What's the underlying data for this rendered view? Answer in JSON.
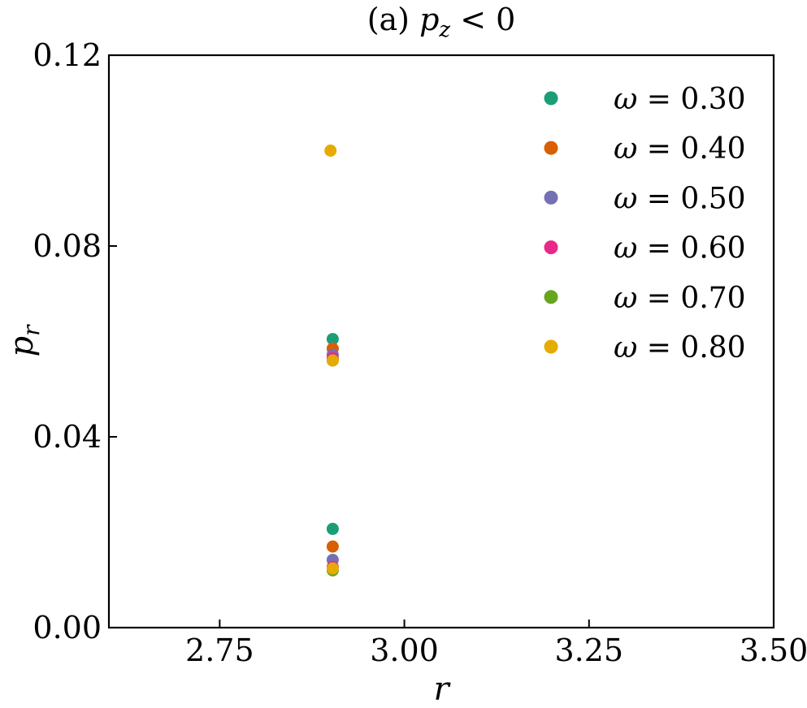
{
  "chart_data": {
    "type": "scatter",
    "title": "(a) p_z < 0",
    "title_parts": {
      "prefix": "(a) ",
      "var": "p",
      "sub": "z",
      "suffix": " < 0"
    },
    "xlabel": "r",
    "ylabel_parts": {
      "var": "p",
      "sub": "r"
    },
    "xlim": [
      2.6,
      3.5
    ],
    "ylim": [
      0.0,
      0.12
    ],
    "x_ticks": [
      2.75,
      3.0,
      3.25,
      3.5
    ],
    "x_tick_labels": [
      "2.75",
      "3.00",
      "3.25",
      "3.50"
    ],
    "y_ticks": [
      0.0,
      0.04,
      0.08,
      0.12
    ],
    "y_tick_labels": [
      "0.00",
      "0.04",
      "0.08",
      "0.12"
    ],
    "grid": false,
    "legend_position": "top-right",
    "series": [
      {
        "name": "ω = 0.30",
        "symbol": "ω",
        "value_text": "= 0.30",
        "color": "#1b9e77",
        "points": [
          {
            "x": 2.903,
            "y": 0.0605
          },
          {
            "x": 2.903,
            "y": 0.0207
          }
        ]
      },
      {
        "name": "ω = 0.40",
        "symbol": "ω",
        "value_text": "= 0.40",
        "color": "#d95f02",
        "points": [
          {
            "x": 2.903,
            "y": 0.0585
          },
          {
            "x": 2.903,
            "y": 0.017
          }
        ]
      },
      {
        "name": "ω = 0.50",
        "symbol": "ω",
        "value_text": "= 0.50",
        "color": "#7570b3",
        "points": [
          {
            "x": 2.903,
            "y": 0.0572
          },
          {
            "x": 2.903,
            "y": 0.0142
          }
        ]
      },
      {
        "name": "ω = 0.60",
        "symbol": "ω",
        "value_text": "= 0.60",
        "color": "#e7298a",
        "points": [
          {
            "x": 2.903,
            "y": 0.0565
          },
          {
            "x": 2.903,
            "y": 0.0127
          }
        ]
      },
      {
        "name": "ω = 0.70",
        "symbol": "ω",
        "value_text": "= 0.70",
        "color": "#66a61e",
        "points": [
          {
            "x": 2.903,
            "y": 0.056
          },
          {
            "x": 2.903,
            "y": 0.012
          }
        ]
      },
      {
        "name": "ω = 0.80",
        "symbol": "ω",
        "value_text": "= 0.80",
        "color": "#e6ab02",
        "points": [
          {
            "x": 2.9,
            "y": 0.1
          },
          {
            "x": 2.903,
            "y": 0.056
          },
          {
            "x": 2.903,
            "y": 0.0124
          }
        ]
      }
    ]
  }
}
